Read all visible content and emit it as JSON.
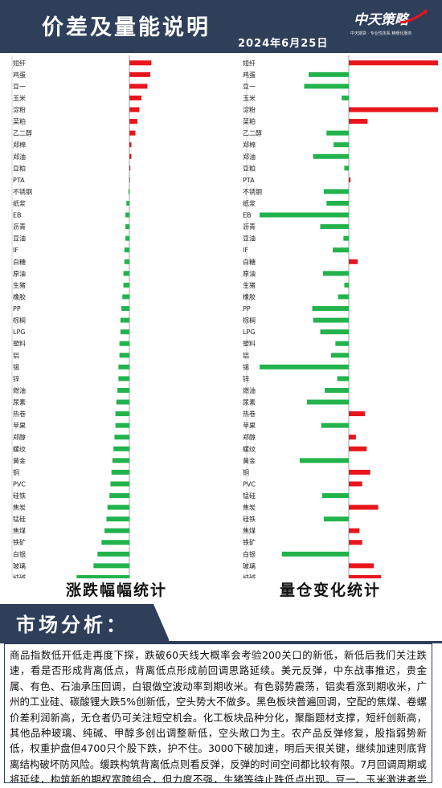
{
  "header": {
    "title": "价差及量能说明",
    "date": "2024年6月25日",
    "logo_text": "中天策略",
    "logo_slogan": "中天期货 · 专业性体系 精细化服务"
  },
  "colors": {
    "header_bg": "#2f3f5a",
    "positive": "#e8151b",
    "negative": "#22b34c"
  },
  "chart_data": [
    {
      "type": "bar",
      "orientation": "horizontal",
      "title": "涨跌幅幅统计",
      "xlim": [
        -10,
        10
      ],
      "xticks": [
        -10,
        -5,
        0,
        5,
        10
      ],
      "grid": false,
      "categories": [
        "短纤",
        "鸡蛋",
        "豆一",
        "玉米",
        "淀粉",
        "菜粕",
        "乙二醇",
        "郑棉",
        "郑油",
        "豆粕",
        "PTA",
        "不锈钢",
        "纸浆",
        "EB",
        "沥青",
        "豆油",
        "IF",
        "白糖",
        "原油",
        "生猪",
        "橡胶",
        "PP",
        "棕榈",
        "LPG",
        "塑料",
        "铝",
        "锡",
        "锌",
        "燃油",
        "尿素",
        "热卷",
        "苹果",
        "郑醇",
        "螺纹",
        "黄金",
        "铜",
        "PVC",
        "硅铁",
        "焦炭",
        "锰硅",
        "焦煤",
        "铁矿",
        "白银",
        "玻璃",
        "纯碱"
      ],
      "values": [
        2.2,
        2.1,
        1.8,
        1.2,
        1.0,
        0.8,
        0.6,
        0.2,
        0.2,
        0.1,
        0.05,
        -0.1,
        -0.3,
        -0.4,
        -0.4,
        -0.4,
        -0.5,
        -0.5,
        -0.6,
        -0.6,
        -0.7,
        -0.8,
        -0.9,
        -0.9,
        -1.0,
        -1.0,
        -1.1,
        -1.1,
        -1.2,
        -1.3,
        -1.4,
        -1.4,
        -1.5,
        -1.6,
        -1.7,
        -1.8,
        -1.9,
        -2.0,
        -2.2,
        -2.3,
        -2.5,
        -2.8,
        -3.2,
        -3.6,
        -5.3
      ]
    },
    {
      "type": "bar",
      "orientation": "horizontal",
      "title": "量仓变化统计",
      "xlim": [
        -10,
        10
      ],
      "xticks": [
        -10,
        -5,
        0,
        5,
        10
      ],
      "grid": false,
      "categories": [
        "短纤",
        "鸡蛋",
        "豆一",
        "玉米",
        "淀粉",
        "菜粕",
        "乙二醇",
        "郑棉",
        "郑油",
        "豆粕",
        "PTA",
        "不锈钢",
        "纸浆",
        "EB",
        "沥青",
        "豆油",
        "IF",
        "白糖",
        "原油",
        "生猪",
        "橡胶",
        "PP",
        "棕榈",
        "LPG",
        "塑料",
        "铝",
        "锡",
        "锌",
        "燃油",
        "尿素",
        "热卷",
        "苹果",
        "郑醇",
        "螺纹",
        "黄金",
        "铜",
        "PVC",
        "锰硅",
        "焦炭",
        "硅铁",
        "焦煤",
        "铁矿",
        "白银",
        "玻璃",
        "纯碱"
      ],
      "values": [
        10,
        -4.5,
        -5.0,
        -0.8,
        10,
        2.1,
        -2.5,
        -1.7,
        -4.0,
        -0.5,
        0.2,
        -2.8,
        -2.5,
        -10,
        -3.2,
        -0.6,
        -1.8,
        1.0,
        -2.9,
        -0.5,
        -1.2,
        -4.1,
        -4.0,
        -3.2,
        -1.5,
        -2.0,
        -10,
        -1.3,
        -2.7,
        -4.7,
        1.8,
        -3.1,
        0.8,
        2.0,
        -5.5,
        2.4,
        1.5,
        -3.0,
        3.3,
        -2.8,
        1.2,
        1.5,
        -7.5,
        2.8,
        3.6
      ]
    }
  ],
  "section": {
    "title": "市场分析："
  },
  "analysis": {
    "text": "商品指数低开低走再度下探，跌破60天线大概率会考验200关口的新低，新低后我们关注跌速，看是否形成背离低点，背离低点形成前回调思路延续。美元反弹，中东战事推迟，贵金属、有色、石油承压回调，白银做空波动率到期收米。有色弱势震荡，铝卖看涨到期收米，广州的工业硅、碳酸锂大跌5%创新低，空头势大不做多。黑色板块普遍回调，空配的焦煤、卷螺价差利润新高，无仓者仍可关注短空机会。化工板块品种分化，聚酯题材支撑，短纤创新高，其他品种玻璃、纯碱、甲醇多创出调整新低，空头敞口为主。农产品反弹修复，股指弱势新低，权重护盘但4700只个股下跌，护不住。3000下破加速，明后天很关键，继续加速则底背离结构破坏防风险。缓跌构筑背离低点则看反弹，反弹的时间空间都比较有限。7月回调周期或将延续，构筑新的期权宽跨组合，但力度不强，生猪等待止跌低点出现。豆一、玉米激进者尝试参与反弹。"
  }
}
